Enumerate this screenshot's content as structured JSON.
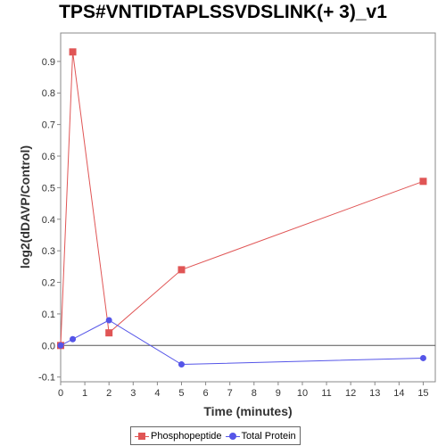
{
  "chart_data": {
    "type": "line",
    "title": "TPS#VNTIDTAPLSSVDSLINK(+ 3)_v1",
    "xlabel": "Time (minutes)",
    "ylabel": "log2(dDAVP/Control)",
    "xlim": [
      0,
      15.5
    ],
    "ylim": [
      -0.115,
      0.99
    ],
    "xticks": [
      0,
      1,
      2,
      3,
      4,
      5,
      6,
      7,
      8,
      9,
      10,
      11,
      12,
      13,
      14,
      15
    ],
    "yticks": [
      -0.1,
      0.0,
      0.1,
      0.2,
      0.3,
      0.4,
      0.5,
      0.6,
      0.7,
      0.8,
      0.9
    ],
    "ytick_labels": [
      "-0.1",
      "0.0",
      "0.1",
      "0.2",
      "0.3",
      "0.4",
      "0.5",
      "0.6",
      "0.7",
      "0.8",
      "0.9"
    ],
    "zero_line": true,
    "grid": false,
    "legend_position": "bottom",
    "series": [
      {
        "name": "Phosphopeptide",
        "color": "#e05555",
        "marker": "square",
        "x": [
          0,
          0.5,
          2,
          5,
          15
        ],
        "y": [
          0.0,
          0.93,
          0.04,
          0.24,
          0.52
        ]
      },
      {
        "name": "Total Protein",
        "color": "#5555e8",
        "marker": "circle",
        "x": [
          0,
          0.5,
          2,
          5,
          15
        ],
        "y": [
          0.0,
          0.02,
          0.08,
          -0.06,
          -0.04
        ]
      }
    ]
  }
}
